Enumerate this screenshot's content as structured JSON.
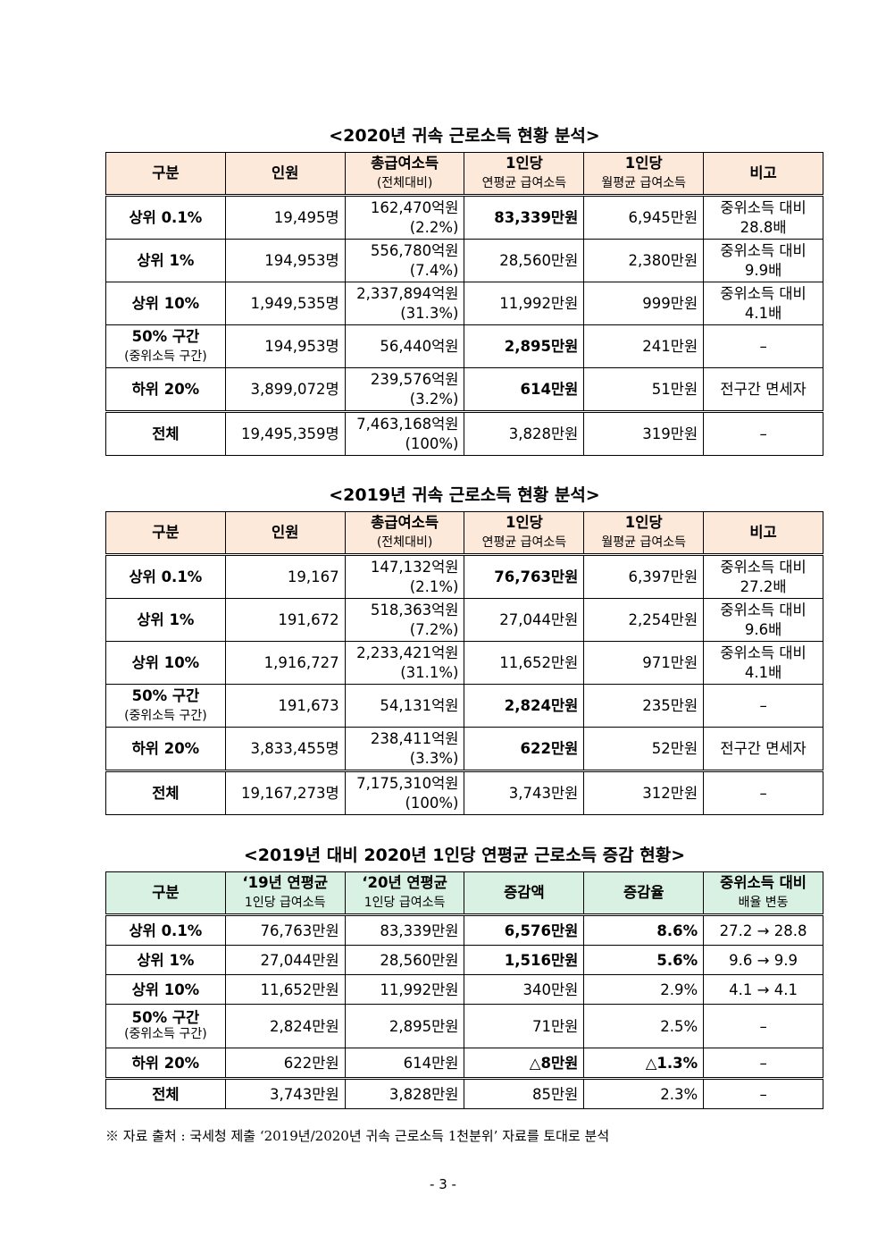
{
  "tables": [
    {
      "title": "<2020년 귀속 근로소득 현황 분석>",
      "header_color": "#fde9d9",
      "header": [
        [
          "구분"
        ],
        [
          "인원"
        ],
        [
          "총급여소득",
          "(전체대비)"
        ],
        [
          "1인당",
          "연평균 급여소득"
        ],
        [
          "1인당",
          "월평균 급여소득"
        ],
        [
          "비고"
        ]
      ],
      "rows": [
        [
          [
            "상위 0.1%"
          ],
          [
            "19,495명"
          ],
          [
            "162,470억원",
            "(2.2%)"
          ],
          {
            "lines": [
              "83,339만원"
            ],
            "bold": true
          },
          [
            "6,945만원"
          ],
          [
            "중위소득 대비",
            "28.8배"
          ]
        ],
        [
          [
            "상위 1%"
          ],
          [
            "194,953명"
          ],
          [
            "556,780억원",
            "(7.4%)"
          ],
          [
            "28,560만원"
          ],
          [
            "2,380만원"
          ],
          [
            "중위소득 대비",
            "9.9배"
          ]
        ],
        [
          [
            "상위 10%"
          ],
          [
            "1,949,535명"
          ],
          [
            "2,337,894억원",
            "(31.3%)"
          ],
          [
            "11,992만원"
          ],
          [
            "999만원"
          ],
          [
            "중위소득 대비",
            "4.1배"
          ]
        ],
        [
          [
            "50% 구간",
            "(중위소득 구간)"
          ],
          [
            "194,953명"
          ],
          [
            "56,440억원"
          ],
          {
            "lines": [
              "2,895만원"
            ],
            "bold": true
          },
          [
            "241만원"
          ],
          [
            "–"
          ]
        ],
        [
          [
            "하위 20%"
          ],
          [
            "3,899,072명"
          ],
          [
            "239,576억원",
            "(3.2%)"
          ],
          {
            "lines": [
              "614만원"
            ],
            "bold": true
          },
          [
            "51만원"
          ],
          [
            "전구간 면세자"
          ]
        ],
        [
          [
            "전체"
          ],
          [
            "19,495,359명"
          ],
          [
            "7,463,168억원",
            "(100%)"
          ],
          [
            "3,828만원"
          ],
          [
            "319만원"
          ],
          [
            "–"
          ]
        ]
      ]
    },
    {
      "title": "<2019년 귀속 근로소득 현황 분석>",
      "header_color": "#fde9d9",
      "header": [
        [
          "구분"
        ],
        [
          "인원"
        ],
        [
          "총급여소득",
          "(전체대비)"
        ],
        [
          "1인당",
          "연평균 급여소득"
        ],
        [
          "1인당",
          "월평균 급여소득"
        ],
        [
          "비고"
        ]
      ],
      "rows": [
        [
          [
            "상위 0.1%"
          ],
          [
            "19,167"
          ],
          [
            "147,132억원",
            "(2.1%)"
          ],
          {
            "lines": [
              "76,763만원"
            ],
            "bold": true
          },
          [
            "6,397만원"
          ],
          [
            "중위소득 대비",
            "27.2배"
          ]
        ],
        [
          [
            "상위 1%"
          ],
          [
            "191,672"
          ],
          [
            "518,363억원",
            "(7.2%)"
          ],
          [
            "27,044만원"
          ],
          [
            "2,254만원"
          ],
          [
            "중위소득 대비",
            "9.6배"
          ]
        ],
        [
          [
            "상위 10%"
          ],
          [
            "1,916,727"
          ],
          [
            "2,233,421억원",
            "(31.1%)"
          ],
          [
            "11,652만원"
          ],
          [
            "971만원"
          ],
          [
            "중위소득 대비",
            "4.1배"
          ]
        ],
        [
          [
            "50% 구간",
            "(중위소득 구간)"
          ],
          [
            "191,673"
          ],
          [
            "54,131억원"
          ],
          {
            "lines": [
              "2,824만원"
            ],
            "bold": true
          },
          [
            "235만원"
          ],
          [
            "–"
          ]
        ],
        [
          [
            "하위 20%"
          ],
          [
            "3,833,455명"
          ],
          [
            "238,411억원",
            "(3.3%)"
          ],
          {
            "lines": [
              "622만원"
            ],
            "bold": true
          },
          [
            "52만원"
          ],
          [
            "전구간 면세자"
          ]
        ],
        [
          [
            "전체"
          ],
          [
            "19,167,273명"
          ],
          [
            "7,175,310억원",
            "(100%)"
          ],
          [
            "3,743만원"
          ],
          [
            "312만원"
          ],
          [
            "–"
          ]
        ]
      ]
    },
    {
      "title": "<2019년 대비 2020년 1인당 연평균 근로소득 증감 현황>",
      "header_color": "#d9f1e3",
      "header": [
        [
          "구분"
        ],
        [
          "‘19년 연평균",
          "1인당 급여소득"
        ],
        [
          "‘20년 연평균",
          "1인당 급여소득"
        ],
        [
          "증감액"
        ],
        [
          "증감율"
        ],
        [
          "중위소득 대비",
          "배율 변동"
        ]
      ],
      "rows": [
        [
          [
            "상위 0.1%"
          ],
          [
            "76,763만원"
          ],
          [
            "83,339만원"
          ],
          {
            "lines": [
              "6,576만원"
            ],
            "bold": true
          },
          {
            "lines": [
              "8.6%"
            ],
            "bold": true
          },
          [
            "27.2 → 28.8"
          ]
        ],
        [
          [
            "상위 1%"
          ],
          [
            "27,044만원"
          ],
          [
            "28,560만원"
          ],
          {
            "lines": [
              "1,516만원"
            ],
            "bold": true
          },
          {
            "lines": [
              "5.6%"
            ],
            "bold": true
          },
          [
            "9.6 → 9.9"
          ]
        ],
        [
          [
            "상위 10%"
          ],
          [
            "11,652만원"
          ],
          [
            "11,992만원"
          ],
          [
            "340만원"
          ],
          [
            "2.9%"
          ],
          [
            "4.1 → 4.1"
          ]
        ],
        [
          [
            "50% 구간",
            "(중위소득 구간)"
          ],
          [
            "2,824만원"
          ],
          [
            "2,895만원"
          ],
          [
            "71만원"
          ],
          [
            "2.5%"
          ],
          [
            "–"
          ]
        ],
        [
          [
            "하위 20%"
          ],
          [
            "622만원"
          ],
          [
            "614만원"
          ],
          {
            "lines": [
              "△8만원"
            ],
            "bold": true
          },
          {
            "lines": [
              "△1.3%"
            ],
            "bold": true
          },
          [
            "–"
          ]
        ],
        [
          [
            "전체"
          ],
          [
            "3,743만원"
          ],
          [
            "3,828만원"
          ],
          [
            "85만원"
          ],
          [
            "2.3%"
          ],
          [
            "–"
          ]
        ]
      ]
    }
  ],
  "footnote": "※ 자료 출처 : 국세청 제출 ‘2019년/2020년 귀속 근로소득 1천분위’ 자료를 토대로 분석",
  "page_number": "- 3 -"
}
